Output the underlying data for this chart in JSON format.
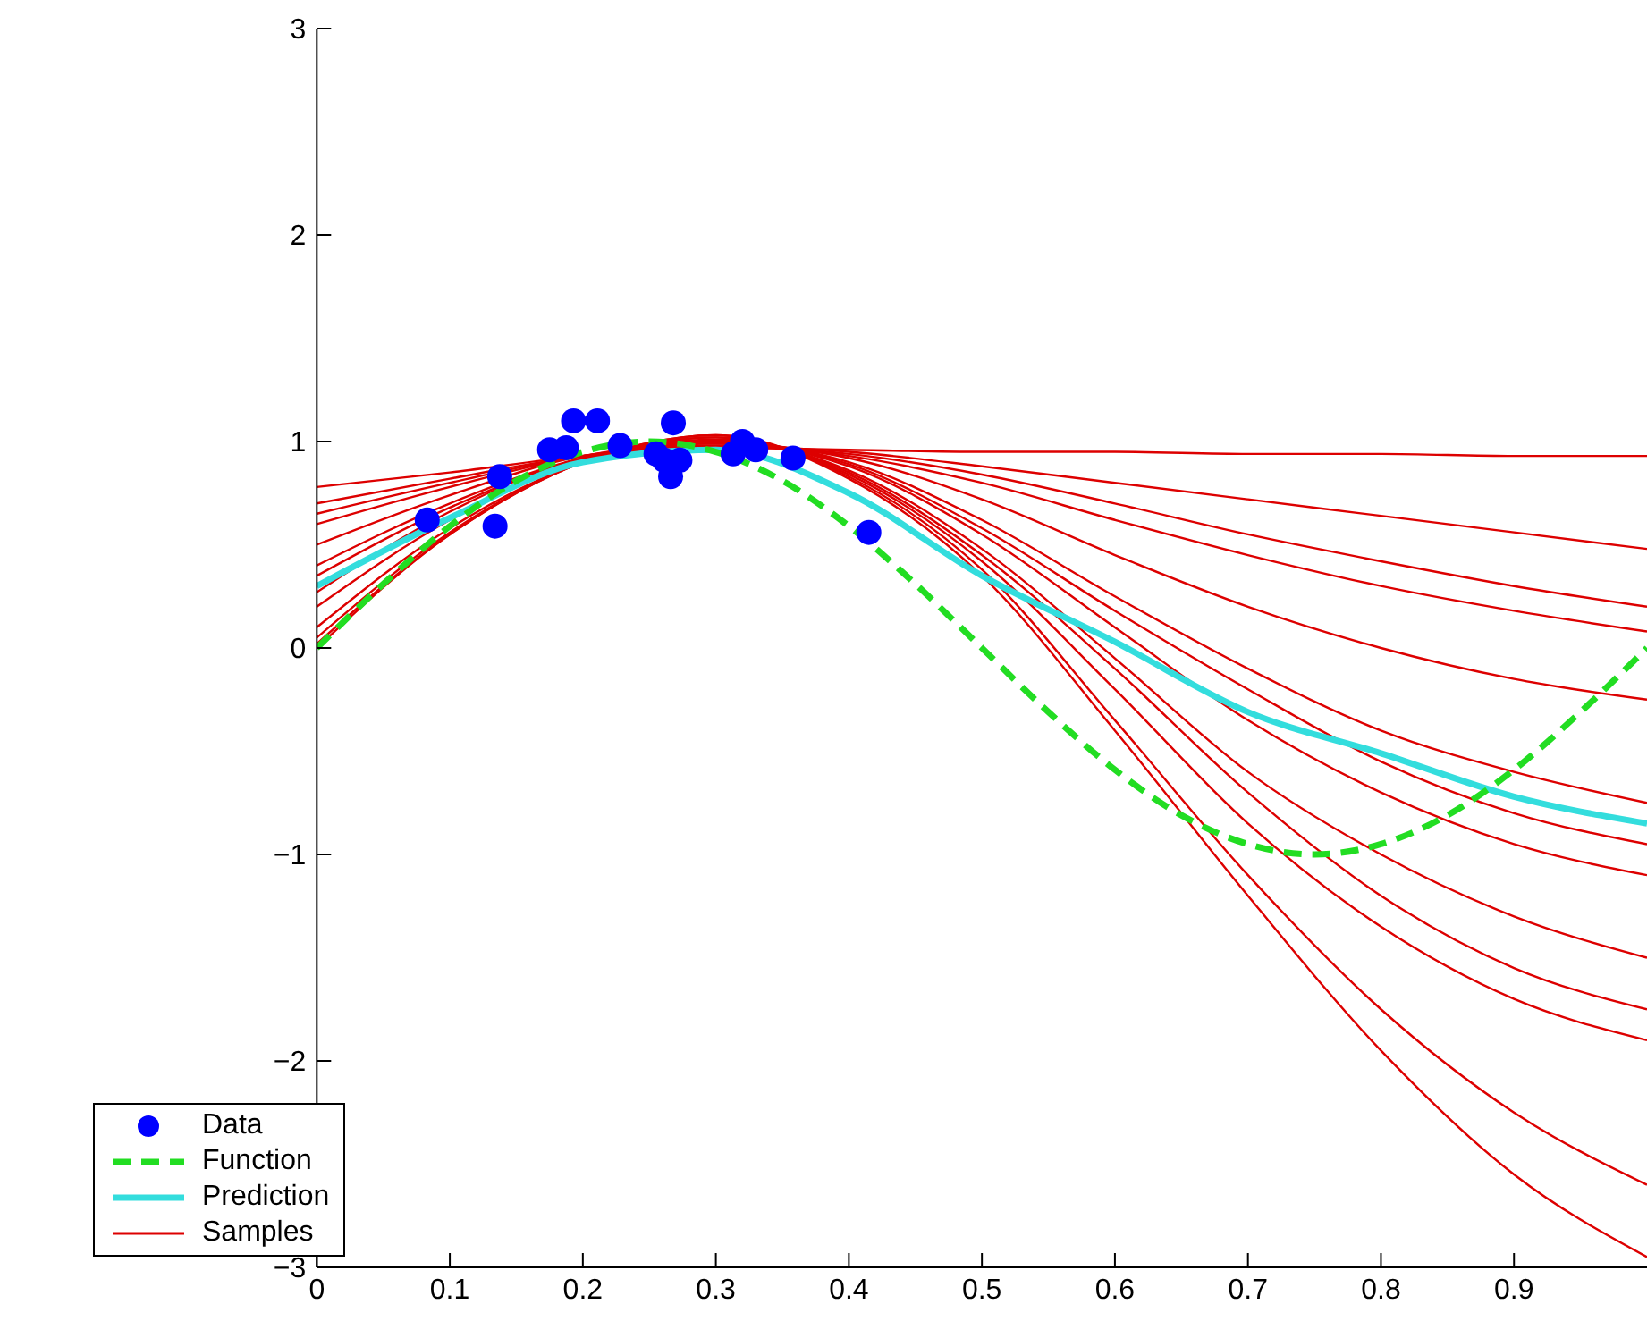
{
  "chart_data": {
    "type": "line",
    "xlim": [
      0,
      1
    ],
    "xticks": [
      0,
      0.1,
      0.2,
      0.3,
      0.4,
      0.5,
      0.6,
      0.7,
      0.8,
      0.9
    ],
    "ylim": [
      -3,
      3
    ],
    "yticks": [
      -3,
      -2,
      -1,
      0,
      1,
      2,
      3
    ],
    "grid": false,
    "legend": "bottom left",
    "x": [
      0,
      0.1,
      0.2,
      0.3,
      0.4,
      0.5,
      0.6,
      0.7,
      0.8,
      0.9,
      1
    ],
    "series": [
      {
        "type": "line",
        "name": "Samples",
        "color": "#dd0000",
        "values": [
          0.78,
          0.85,
          0.93,
          0.97,
          0.96,
          0.95,
          0.95,
          0.94,
          0.94,
          0.93,
          0.93
        ]
      },
      {
        "type": "line",
        "color": "#dd0000",
        "values": [
          0.7,
          0.82,
          0.93,
          0.98,
          0.95,
          0.88,
          0.8,
          0.72,
          0.64,
          0.56,
          0.48
        ]
      },
      {
        "type": "line",
        "color": "#dd0000",
        "values": [
          0.65,
          0.8,
          0.93,
          0.98,
          0.94,
          0.84,
          0.7,
          0.55,
          0.42,
          0.3,
          0.2
        ]
      },
      {
        "type": "line",
        "color": "#dd0000",
        "values": [
          0.6,
          0.78,
          0.93,
          0.99,
          0.93,
          0.8,
          0.62,
          0.45,
          0.3,
          0.18,
          0.08
        ]
      },
      {
        "type": "line",
        "color": "#dd0000",
        "values": [
          0.5,
          0.74,
          0.93,
          0.99,
          0.92,
          0.72,
          0.45,
          0.2,
          0,
          -0.15,
          -0.25
        ]
      },
      {
        "type": "line",
        "color": "#dd0000",
        "values": [
          0.4,
          0.7,
          0.92,
          1,
          0.9,
          0.62,
          0.25,
          -0.1,
          -0.4,
          -0.6,
          -0.75
        ]
      },
      {
        "type": "line",
        "color": "#dd0000",
        "values": [
          0.35,
          0.68,
          0.92,
          1,
          0.89,
          0.58,
          0.18,
          -0.2,
          -0.55,
          -0.8,
          -0.95
        ]
      },
      {
        "type": "line",
        "color": "#dd0000",
        "values": [
          0.27,
          0.66,
          0.92,
          1,
          0.88,
          0.55,
          0.1,
          -0.35,
          -0.7,
          -0.95,
          -1.1
        ]
      },
      {
        "type": "line",
        "color": "#dd0000",
        "values": [
          0.2,
          0.62,
          0.91,
          1.01,
          0.86,
          0.48,
          -0.05,
          -0.6,
          -1,
          -1.3,
          -1.5
        ]
      },
      {
        "type": "line",
        "color": "#dd0000",
        "values": [
          0.1,
          0.58,
          0.9,
          1.02,
          0.84,
          0.42,
          -0.2,
          -0.85,
          -1.35,
          -1.7,
          -1.9
        ]
      },
      {
        "type": "line",
        "color": "#dd0000",
        "values": [
          0.05,
          0.56,
          0.9,
          1.02,
          0.85,
          0.45,
          -0.1,
          -0.7,
          -1.2,
          -1.55,
          -1.75
        ]
      },
      {
        "type": "line",
        "color": "#dd0000",
        "values": [
          0,
          0.55,
          0.9,
          1.03,
          0.83,
          0.38,
          -0.35,
          -1.1,
          -1.75,
          -2.25,
          -2.6
        ]
      },
      {
        "type": "line",
        "color": "#dd0000",
        "values": [
          0.02,
          0.55,
          0.9,
          1.03,
          0.82,
          0.35,
          -0.4,
          -1.2,
          -1.95,
          -2.55,
          -2.95
        ]
      },
      {
        "type": "line",
        "name": "Prediction",
        "color": "#33dddd",
        "values": [
          0.3,
          0.63,
          0.9,
          0.96,
          0.75,
          0.35,
          0.03,
          -0.31,
          -0.51,
          -0.72,
          -0.85
        ]
      },
      {
        "type": "line",
        "name": "Function",
        "color": "#22dd22",
        "line_style": "dashed",
        "x": [
          0,
          0.05,
          0.1,
          0.15,
          0.2,
          0.25,
          0.3,
          0.35,
          0.4,
          0.45,
          0.5,
          0.55,
          0.6,
          0.65,
          0.7,
          0.75,
          0.8,
          0.85,
          0.9,
          0.95,
          1
        ],
        "values": [
          0,
          0.31,
          0.59,
          0.81,
          0.95,
          1,
          0.95,
          0.81,
          0.59,
          0.31,
          0,
          -0.31,
          -0.59,
          -0.81,
          -0.95,
          -1,
          -0.95,
          -0.81,
          -0.59,
          -0.31,
          0
        ]
      },
      {
        "type": "scatter",
        "name": "Data",
        "color": "#0000ff",
        "marker": "circle",
        "x": [
          0.083,
          0.134,
          0.1375,
          0.175,
          0.1875,
          0.193,
          0.211,
          0.228,
          0.255,
          0.266,
          0.268,
          0.261,
          0.273,
          0.313,
          0.32,
          0.33,
          0.358,
          0.415
        ],
        "values": [
          0.62,
          0.59,
          0.83,
          0.96,
          0.97,
          1.1,
          1.1,
          0.98,
          0.94,
          0.83,
          1.09,
          0.91,
          0.91,
          0.94,
          1,
          0.96,
          0.92,
          0.56
        ]
      }
    ]
  }
}
